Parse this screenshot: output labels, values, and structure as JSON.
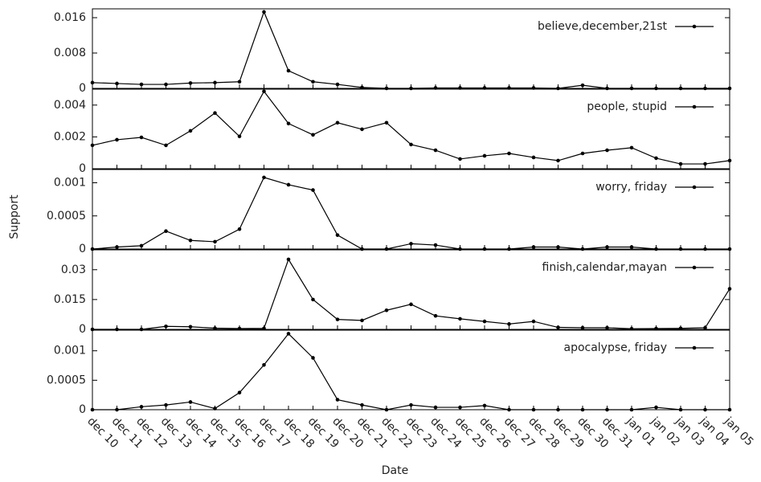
{
  "chart_data": [
    {
      "type": "line",
      "ylim": [
        0,
        0.018
      ],
      "yticks": [
        0,
        0.008,
        0.016
      ],
      "series": [
        {
          "name": "believe,december,21st",
          "color": "#000000",
          "values": [
            0.0013,
            0.0011,
            0.0009,
            0.0009,
            0.0012,
            0.0013,
            0.0015,
            0.0173,
            0.004,
            0.0015,
            0.0009,
            0.0002,
            0,
            0,
            0.0001,
            0.0001,
            0.0001,
            0.0001,
            0.0001,
            0,
            0.0007,
            0,
            0,
            0,
            0,
            0,
            0
          ]
        }
      ]
    },
    {
      "type": "line",
      "ylim": [
        0,
        0.005
      ],
      "yticks": [
        0,
        0.002,
        0.004
      ],
      "series": [
        {
          "name": "people, stupid",
          "color": "#000000",
          "values": [
            0.00147,
            0.00182,
            0.00197,
            0.00147,
            0.00238,
            0.0035,
            0.00203,
            0.00486,
            0.00284,
            0.00213,
            0.00289,
            0.00248,
            0.00289,
            0.00152,
            0.00116,
            0.00061,
            0.00081,
            0.00096,
            0.00071,
            0.00051,
            0.00096,
            0.00116,
            0.00132,
            0.00066,
            0.0003,
            0.0003,
            0.00051
          ]
        }
      ]
    },
    {
      "type": "line",
      "ylim": [
        0,
        0.0012
      ],
      "yticks": [
        0,
        0.0005,
        0.001
      ],
      "ylabel": "Support",
      "series": [
        {
          "name": "worry, friday",
          "color": "#000000",
          "values": [
            0,
            3e-05,
            5e-05,
            0.00027,
            0.00013,
            0.00011,
            0.0003,
            0.00108,
            0.00097,
            0.00089,
            0.00021,
            0,
            0,
            8e-05,
            6e-05,
            0,
            0,
            0,
            3e-05,
            3e-05,
            0,
            3e-05,
            3e-05,
            0,
            0,
            0,
            0
          ]
        }
      ]
    },
    {
      "type": "line",
      "ylim": [
        0,
        0.04
      ],
      "yticks": [
        0,
        0.015,
        0.03
      ],
      "series": [
        {
          "name": "finish,calendar,mayan",
          "color": "#000000",
          "values": [
            0,
            0,
            0,
            0.0015,
            0.0013,
            0.0006,
            0.0004,
            0.0005,
            0.0352,
            0.015,
            0.005,
            0.0045,
            0.0096,
            0.0126,
            0.0068,
            0.0053,
            0.004,
            0.0027,
            0.004,
            0.001,
            0.0008,
            0.0008,
            0.0003,
            0.0004,
            0.0005,
            0.0008,
            0.0204
          ]
        }
      ]
    },
    {
      "type": "line",
      "ylim": [
        0,
        0.00135
      ],
      "yticks": [
        0,
        0.0005,
        0.001
      ],
      "xlabel": "Date",
      "categories": [
        "dec 10",
        "dec 11",
        "dec 12",
        "dec 13",
        "dec 14",
        "dec 15",
        "dec 16",
        "dec 17",
        "dec 18",
        "dec 19",
        "dec 20",
        "dec 21",
        "dec 22",
        "dec 23",
        "dec 24",
        "dec 25",
        "dec 26",
        "dec 27",
        "dec 28",
        "dec 29",
        "dec 30",
        "dec 31",
        "jan 01",
        "jan 02",
        "jan 03",
        "jan 04",
        "jan 05"
      ],
      "series": [
        {
          "name": "apocalypse, friday",
          "color": "#000000",
          "values": [
            0,
            0,
            5e-05,
            8e-05,
            0.00013,
            2e-05,
            0.00029,
            0.00076,
            0.00129,
            0.00088,
            0.00017,
            8e-05,
            0,
            8e-05,
            4e-05,
            4e-05,
            7e-05,
            0,
            0,
            0,
            0,
            0,
            0,
            4e-05,
            0,
            0,
            0
          ]
        }
      ]
    }
  ]
}
